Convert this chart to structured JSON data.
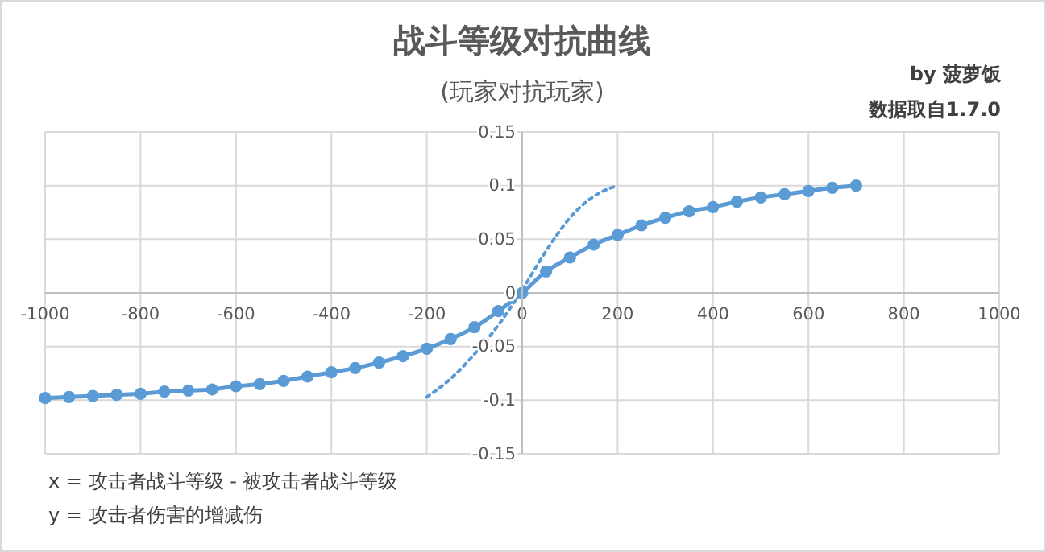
{
  "chart_data": {
    "type": "line",
    "title": "战斗等级对抗曲线",
    "subtitle": "(玩家对抗玩家)",
    "annotations": [
      "by 菠萝饭",
      "数据取自1.7.0",
      "x = 攻击者战斗等级 - 被攻击者战斗等级",
      "y = 攻击者伤害的增减伤"
    ],
    "xlim": [
      -1000,
      1000
    ],
    "xticks": [
      -1000,
      -800,
      -600,
      -400,
      -200,
      0,
      200,
      400,
      600,
      800,
      1000
    ],
    "ylim": [
      -0.15,
      0.15
    ],
    "yticks": [
      -0.15,
      -0.1,
      -0.05,
      0,
      0.05,
      0.1,
      0.15
    ],
    "grid": true,
    "series": [
      {
        "color": "#5b9bd5",
        "marker": "circle",
        "line_style": "solid",
        "x": [
          -1000,
          -950,
          -900,
          -850,
          -800,
          -750,
          -700,
          -650,
          -600,
          -550,
          -500,
          -450,
          -400,
          -350,
          -300,
          -250,
          -200,
          -150,
          -100,
          -50,
          0,
          50,
          100,
          150,
          200,
          250,
          300,
          350,
          400,
          450,
          500,
          550,
          600,
          650,
          700
        ],
        "values": [
          -0.098,
          -0.097,
          -0.096,
          -0.095,
          -0.094,
          -0.092,
          -0.091,
          -0.09,
          -0.087,
          -0.085,
          -0.082,
          -0.078,
          -0.074,
          -0.07,
          -0.065,
          -0.059,
          -0.052,
          -0.043,
          -0.032,
          -0.017,
          0,
          0.02,
          0.033,
          0.045,
          0.054,
          0.063,
          0.07,
          0.076,
          0.08,
          0.085,
          0.089,
          0.092,
          0.095,
          0.098,
          0.1
        ]
      },
      {
        "color": "#5b9bd5",
        "marker": "none",
        "line_style": "dotted",
        "x": [
          -200,
          -150,
          -100,
          -50,
          0,
          50,
          100,
          150,
          200
        ],
        "values": [
          -0.097,
          -0.08,
          -0.057,
          -0.03,
          0.003,
          0.039,
          0.07,
          0.09,
          0.1
        ]
      }
    ]
  }
}
